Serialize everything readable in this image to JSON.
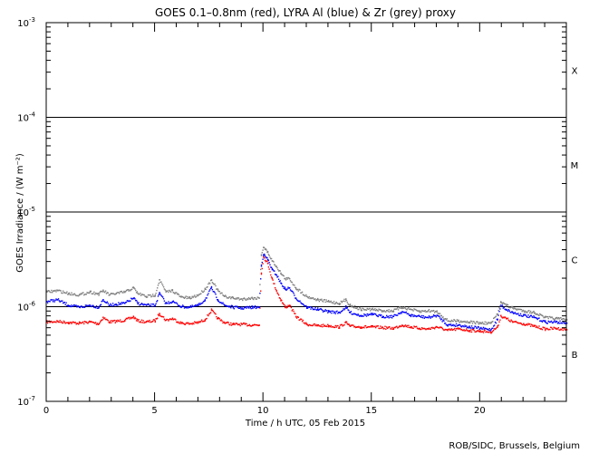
{
  "chart_data": {
    "type": "scatter",
    "title": "GOES 0.1–0.8nm (red), LYRA Al (blue) & Zr (grey) proxy",
    "xlabel": "Time / h UTC, 05 Feb 2015",
    "ylabel": "GOES Irradiance / (W m⁻²)",
    "y_scale": "log",
    "xlim": [
      0,
      24
    ],
    "ylim": [
      1e-07,
      0.001
    ],
    "x_ticks": [
      0,
      5,
      10,
      15,
      20
    ],
    "y_tick_labels": [
      {
        "mantissa": "10",
        "exp": "-7",
        "value": 1e-07
      },
      {
        "mantissa": "10",
        "exp": "-6",
        "value": 1e-06
      },
      {
        "mantissa": "10",
        "exp": "-5",
        "value": 1e-05
      },
      {
        "mantissa": "10",
        "exp": "-4",
        "value": 0.0001
      },
      {
        "mantissa": "10",
        "exp": "-3",
        "value": 0.001
      }
    ],
    "flare_thresholds": [
      1e-06,
      1e-05,
      0.0001
    ],
    "flare_classes": [
      {
        "label": "B",
        "value": 3.16e-07
      },
      {
        "label": "C",
        "value": 3.16e-06
      },
      {
        "label": "M",
        "value": 3.16e-05
      },
      {
        "label": "X",
        "value": 0.000316
      }
    ],
    "colors": {
      "goes": "#ff0000",
      "lyra_al": "#0000ff",
      "lyra_zr": "#808080"
    },
    "series": [
      {
        "name": "GOES 0.1–0.8nm",
        "color": "#ff0000",
        "points": [
          [
            0,
            7e-07
          ],
          [
            0.5,
            7.1e-07
          ],
          [
            1,
            6.9e-07
          ],
          [
            1.5,
            6.8e-07
          ],
          [
            2,
            7e-07
          ],
          [
            2.4,
            6.7e-07
          ],
          [
            2.6,
            7.8e-07
          ],
          [
            2.9,
            7e-07
          ],
          [
            3.2,
            7.1e-07
          ],
          [
            3.6,
            7.3e-07
          ],
          [
            4.0,
            7.9e-07
          ],
          [
            4.2,
            7.2e-07
          ],
          [
            4.6,
            7e-07
          ],
          [
            5.0,
            7.2e-07
          ],
          [
            5.2,
            8.6e-07
          ],
          [
            5.5,
            7.3e-07
          ],
          [
            5.8,
            7.6e-07
          ],
          [
            6.2,
            6.8e-07
          ],
          [
            6.6,
            6.7e-07
          ],
          [
            7.0,
            6.9e-07
          ],
          [
            7.3,
            7.4e-07
          ],
          [
            7.6,
            9.3e-07
          ],
          [
            7.9,
            7.6e-07
          ],
          [
            8.2,
            6.9e-07
          ],
          [
            8.6,
            6.6e-07
          ],
          [
            9.0,
            6.6e-07
          ],
          [
            9.5,
            6.5e-07
          ],
          [
            9.8,
            6.5e-07
          ],
          [
            9.9,
            2.3e-06
          ],
          [
            10.0,
            3.4e-06
          ],
          [
            10.2,
            2.9e-06
          ],
          [
            10.4,
            2e-06
          ],
          [
            10.6,
            1.5e-06
          ],
          [
            10.8,
            1.2e-06
          ],
          [
            11.0,
            1e-06
          ],
          [
            11.2,
            1.05e-06
          ],
          [
            11.5,
            8e-07
          ],
          [
            12.0,
            6.6e-07
          ],
          [
            12.5,
            6.4e-07
          ],
          [
            13.0,
            6.4e-07
          ],
          [
            13.5,
            6.2e-07
          ],
          [
            13.8,
            6.9e-07
          ],
          [
            14.0,
            6.3e-07
          ],
          [
            14.5,
            6.2e-07
          ],
          [
            15.0,
            6.2e-07
          ],
          [
            15.5,
            6.1e-07
          ],
          [
            16.0,
            6e-07
          ],
          [
            16.4,
            6.5e-07
          ],
          [
            16.8,
            6.2e-07
          ],
          [
            17.2,
            6e-07
          ],
          [
            17.6,
            5.9e-07
          ],
          [
            18.0,
            6.2e-07
          ],
          [
            18.5,
            5.7e-07
          ],
          [
            19.0,
            5.9e-07
          ],
          [
            19.5,
            5.7e-07
          ],
          [
            20.0,
            5.6e-07
          ],
          [
            20.5,
            5.5e-07
          ],
          [
            20.8,
            6.2e-07
          ],
          [
            20.95,
            8.1e-07
          ],
          [
            21.2,
            7.6e-07
          ],
          [
            21.5,
            7e-07
          ],
          [
            22.0,
            6.7e-07
          ],
          [
            22.5,
            6.3e-07
          ],
          [
            23.0,
            5.9e-07
          ],
          [
            23.5,
            6e-07
          ],
          [
            24.0,
            5.8e-07
          ]
        ]
      },
      {
        "name": "LYRA Al",
        "color": "#0000ff",
        "points": [
          [
            0,
            1.15e-06
          ],
          [
            0.5,
            1.2e-06
          ],
          [
            1,
            1.05e-06
          ],
          [
            1.5,
            1e-06
          ],
          [
            2,
            1.05e-06
          ],
          [
            2.4,
            1e-06
          ],
          [
            2.6,
            1.2e-06
          ],
          [
            2.9,
            1.05e-06
          ],
          [
            3.2,
            1.08e-06
          ],
          [
            3.6,
            1.1e-06
          ],
          [
            4.0,
            1.25e-06
          ],
          [
            4.2,
            1.1e-06
          ],
          [
            4.6,
            1.05e-06
          ],
          [
            5.0,
            1.05e-06
          ],
          [
            5.2,
            1.4e-06
          ],
          [
            5.5,
            1.1e-06
          ],
          [
            5.8,
            1.15e-06
          ],
          [
            6.2,
            1.02e-06
          ],
          [
            6.6,
            1e-06
          ],
          [
            7.0,
            1.05e-06
          ],
          [
            7.3,
            1.2e-06
          ],
          [
            7.6,
            1.6e-06
          ],
          [
            7.9,
            1.2e-06
          ],
          [
            8.2,
            1.05e-06
          ],
          [
            8.6,
            1e-06
          ],
          [
            9.0,
            9.8e-07
          ],
          [
            9.5,
            1e-06
          ],
          [
            9.8,
            1e-06
          ],
          [
            9.9,
            2.8e-06
          ],
          [
            10.0,
            3.6e-06
          ],
          [
            10.2,
            3.2e-06
          ],
          [
            10.4,
            2.5e-06
          ],
          [
            10.6,
            2.2e-06
          ],
          [
            10.8,
            1.8e-06
          ],
          [
            11.0,
            1.55e-06
          ],
          [
            11.2,
            1.6e-06
          ],
          [
            11.5,
            1.25e-06
          ],
          [
            12.0,
            1e-06
          ],
          [
            12.5,
            9.5e-07
          ],
          [
            13.0,
            9e-07
          ],
          [
            13.5,
            8.8e-07
          ],
          [
            13.8,
            1e-06
          ],
          [
            14.0,
            8.8e-07
          ],
          [
            14.5,
            8.2e-07
          ],
          [
            15.0,
            8.4e-07
          ],
          [
            15.5,
            8e-07
          ],
          [
            16.0,
            8e-07
          ],
          [
            16.4,
            9e-07
          ],
          [
            16.8,
            8.2e-07
          ],
          [
            17.2,
            8e-07
          ],
          [
            17.6,
            7.8e-07
          ],
          [
            18.0,
            8.2e-07
          ],
          [
            18.5,
            6.5e-07
          ],
          [
            19.0,
            6.5e-07
          ],
          [
            19.5,
            6.2e-07
          ],
          [
            20.0,
            6e-07
          ],
          [
            20.5,
            5.8e-07
          ],
          [
            20.8,
            7.5e-07
          ],
          [
            20.95,
            1.05e-06
          ],
          [
            21.2,
            9.5e-07
          ],
          [
            21.5,
            8.8e-07
          ],
          [
            22.0,
            8.2e-07
          ],
          [
            22.5,
            7.8e-07
          ],
          [
            23.0,
            7e-07
          ],
          [
            23.5,
            7e-07
          ],
          [
            24.0,
            6.8e-07
          ]
        ]
      },
      {
        "name": "LYRA Zr",
        "color": "#808080",
        "points": [
          [
            0,
            1.45e-06
          ],
          [
            0.5,
            1.5e-06
          ],
          [
            1,
            1.4e-06
          ],
          [
            1.5,
            1.35e-06
          ],
          [
            2,
            1.45e-06
          ],
          [
            2.4,
            1.38e-06
          ],
          [
            2.6,
            1.5e-06
          ],
          [
            2.9,
            1.35e-06
          ],
          [
            3.2,
            1.4e-06
          ],
          [
            3.6,
            1.45e-06
          ],
          [
            4.0,
            1.6e-06
          ],
          [
            4.2,
            1.4e-06
          ],
          [
            4.6,
            1.3e-06
          ],
          [
            5.0,
            1.35e-06
          ],
          [
            5.2,
            1.95e-06
          ],
          [
            5.5,
            1.45e-06
          ],
          [
            5.8,
            1.5e-06
          ],
          [
            6.2,
            1.28e-06
          ],
          [
            6.6,
            1.25e-06
          ],
          [
            7.0,
            1.35e-06
          ],
          [
            7.3,
            1.55e-06
          ],
          [
            7.6,
            1.95e-06
          ],
          [
            7.9,
            1.5e-06
          ],
          [
            8.2,
            1.3e-06
          ],
          [
            8.6,
            1.25e-06
          ],
          [
            9.0,
            1.22e-06
          ],
          [
            9.5,
            1.25e-06
          ],
          [
            9.8,
            1.25e-06
          ],
          [
            9.9,
            3.6e-06
          ],
          [
            10.0,
            4.3e-06
          ],
          [
            10.2,
            3.8e-06
          ],
          [
            10.4,
            3.1e-06
          ],
          [
            10.6,
            2.7e-06
          ],
          [
            10.8,
            2.3e-06
          ],
          [
            11.0,
            2e-06
          ],
          [
            11.2,
            2e-06
          ],
          [
            11.5,
            1.6e-06
          ],
          [
            12.0,
            1.3e-06
          ],
          [
            12.5,
            1.2e-06
          ],
          [
            13.0,
            1.15e-06
          ],
          [
            13.5,
            1.1e-06
          ],
          [
            13.8,
            1.2e-06
          ],
          [
            14.0,
            1.05e-06
          ],
          [
            14.5,
            9.5e-07
          ],
          [
            15.0,
            9.5e-07
          ],
          [
            15.5,
            9.2e-07
          ],
          [
            16.0,
            9.2e-07
          ],
          [
            16.4,
            1e-06
          ],
          [
            16.8,
            9.5e-07
          ],
          [
            17.2,
            9e-07
          ],
          [
            17.6,
            9.2e-07
          ],
          [
            18.0,
            9e-07
          ],
          [
            18.5,
            7.2e-07
          ],
          [
            19.0,
            7.2e-07
          ],
          [
            19.5,
            7e-07
          ],
          [
            20.0,
            6.8e-07
          ],
          [
            20.5,
            6.8e-07
          ],
          [
            20.8,
            8.5e-07
          ],
          [
            20.95,
            1.15e-06
          ],
          [
            21.2,
            1.05e-06
          ],
          [
            21.5,
            9.8e-07
          ],
          [
            22.0,
            9.2e-07
          ],
          [
            22.5,
            8.8e-07
          ],
          [
            23.0,
            7.8e-07
          ],
          [
            23.5,
            7.6e-07
          ],
          [
            24.0,
            7.4e-07
          ]
        ]
      }
    ]
  },
  "credit": "ROB/SIDC, Brussels, Belgium"
}
